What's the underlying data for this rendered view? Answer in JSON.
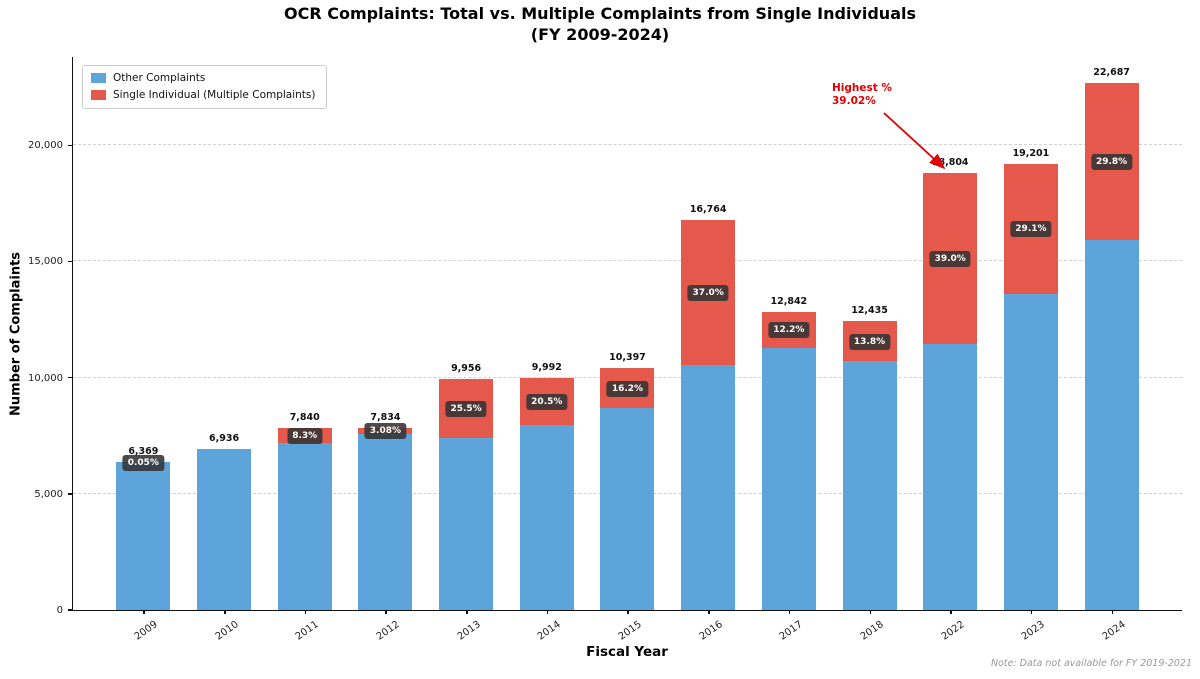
{
  "title": {
    "line1": "OCR Complaints: Total vs. Multiple Complaints from Single Individuals",
    "line2": "(FY 2009-2024)"
  },
  "legend": [
    {
      "label": "Other Complaints",
      "color": "#5CA4DA"
    },
    {
      "label": "Single Individual (Multiple Complaints)",
      "color": "#E4594C"
    }
  ],
  "axes": {
    "ylabel": "Number of Complaints",
    "xlabel": "Fiscal Year",
    "yticks": [
      "0",
      "5,000",
      "10,000",
      "15,000",
      "20,000"
    ],
    "ytick_values": [
      0,
      5000,
      10000,
      15000,
      20000
    ]
  },
  "note": "Note: Data not available for FY 2019-2021",
  "annotation": {
    "line1": "Highest %",
    "line2": "39.02%",
    "color": "#E00000",
    "points_to": "2022"
  },
  "chart_data": {
    "type": "bar",
    "stacked": true,
    "title": "OCR Complaints: Total vs. Multiple Complaints from Single Individuals (FY 2009-2024)",
    "xlabel": "Fiscal Year",
    "ylabel": "Number of Complaints",
    "ylim": [
      0,
      23800
    ],
    "grid": true,
    "legend_position": "upper left",
    "categories": [
      "2009",
      "2010",
      "2011",
      "2012",
      "2013",
      "2014",
      "2015",
      "2016",
      "2017",
      "2018",
      "2022",
      "2023",
      "2024"
    ],
    "totals": [
      6369,
      6936,
      7840,
      7834,
      9956,
      9992,
      10397,
      16764,
      12842,
      12435,
      18804,
      19201,
      22687
    ],
    "total_labels": [
      "6,369",
      "6,936",
      "7,840",
      "7,834",
      "9,956",
      "9,992",
      "10,397",
      "16,764",
      "12,842",
      "12,435",
      "18,804",
      "19,201",
      "22,687"
    ],
    "pct_labels": [
      "0.05%",
      null,
      "8.3%",
      "3.08%",
      "25.5%",
      "20.5%",
      "16.2%",
      "37.0%",
      "12.2%",
      "13.8%",
      "39.0%",
      "29.1%",
      "29.8%"
    ],
    "pct_values": [
      0.05,
      0,
      8.3,
      3.08,
      25.5,
      20.5,
      16.2,
      37.0,
      12.2,
      13.8,
      39.02,
      29.1,
      29.8
    ],
    "series": [
      {
        "name": "Other Complaints",
        "values": [
          6366,
          6936,
          7189,
          7593,
          7417,
          7944,
          8713,
          10561,
          11275,
          10719,
          11467,
          13614,
          15926
        ]
      },
      {
        "name": "Single Individual (Multiple Complaints)",
        "values": [
          3,
          0,
          651,
          241,
          2539,
          2048,
          1684,
          6203,
          1567,
          1716,
          7337,
          5587,
          6761
        ]
      }
    ]
  }
}
